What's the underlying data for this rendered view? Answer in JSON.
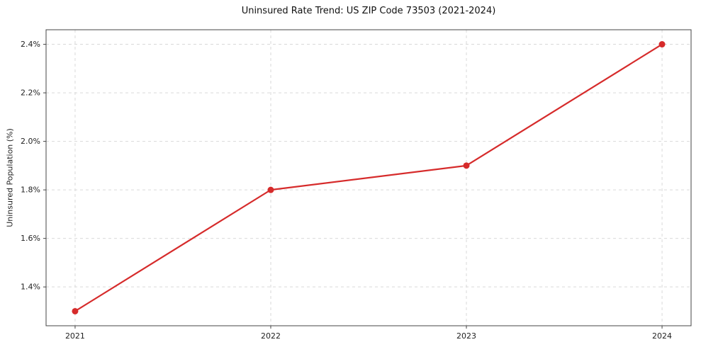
{
  "chart_data": {
    "type": "line",
    "title": "Uninsured Rate Trend: US ZIP Code 73503 (2021-2024)",
    "xlabel": "",
    "ylabel": "Uninsured Population (%)",
    "categories": [
      "2021",
      "2022",
      "2023",
      "2024"
    ],
    "series": [
      {
        "name": "Uninsured Population (%)",
        "values": [
          1.3,
          1.8,
          1.9,
          2.4
        ]
      }
    ],
    "values": [
      1.3,
      1.8,
      1.9,
      2.4
    ],
    "ylim": [
      1.24,
      2.46
    ],
    "yticks": [
      1.4,
      1.6,
      1.8,
      2.0,
      2.2,
      2.4
    ],
    "ytick_labels": [
      "1.4%",
      "1.6%",
      "1.8%",
      "2.0%",
      "2.2%",
      "2.4%"
    ],
    "grid": true,
    "legend_position": "none",
    "colors": {
      "line": "#d62b2b",
      "marker": "#d62b2b",
      "grid": "#d9d9d9",
      "spine": "#444444",
      "text": "#222222"
    }
  }
}
